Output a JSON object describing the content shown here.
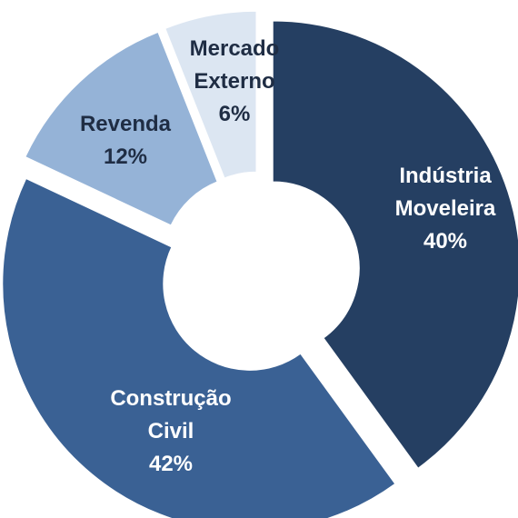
{
  "chart_data": {
    "type": "donut",
    "categories": [
      "Indústria Moveleira",
      "Construção Civil",
      "Revenda",
      "Mercado Externo"
    ],
    "values": [
      40,
      42,
      12,
      6
    ],
    "value_labels": [
      "40%",
      "42%",
      "12%",
      "6%"
    ],
    "colors": [
      "#253f62",
      "#3a6194",
      "#95b3d7",
      "#dce6f2"
    ]
  }
}
